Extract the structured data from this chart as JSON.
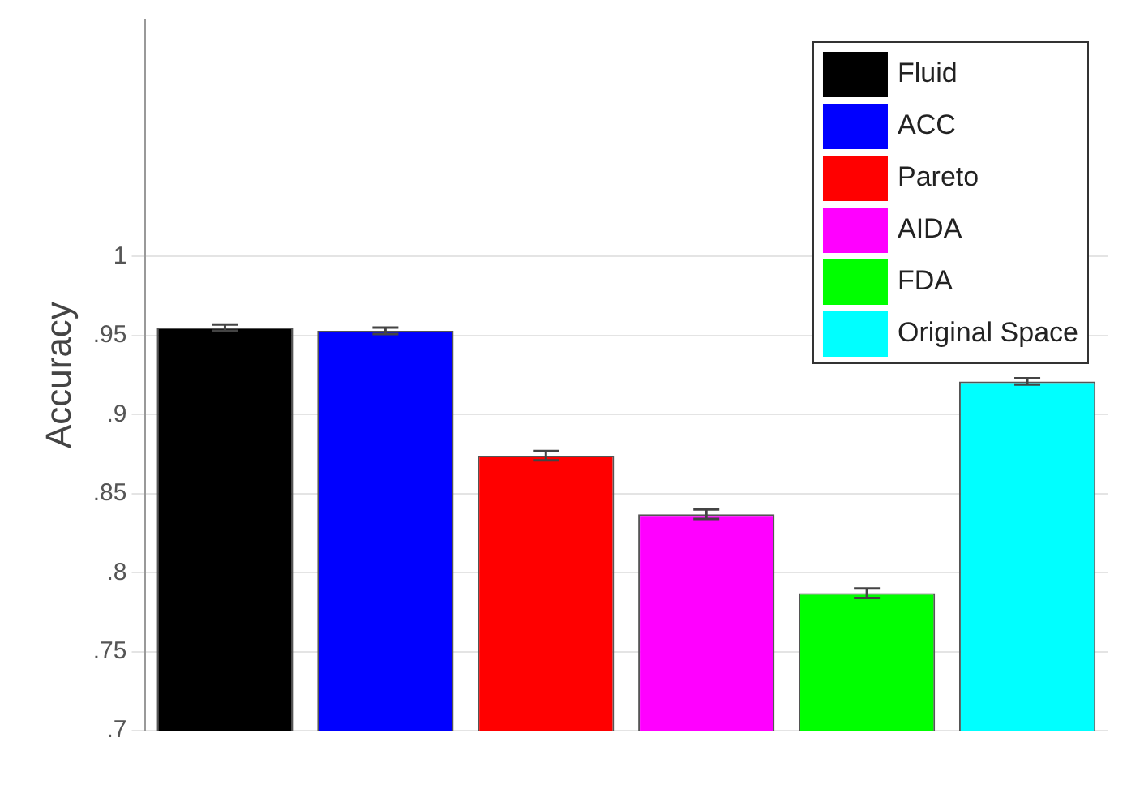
{
  "chart_data": {
    "type": "bar",
    "ylabel": "Accuracy",
    "categories": [
      null,
      null,
      null,
      null,
      null,
      null
    ],
    "series": [
      {
        "name": "Fluid",
        "color": "#000000",
        "values": [
          0.955,
          null,
          null,
          null,
          null,
          null
        ],
        "errors": [
          0.002,
          null,
          null,
          null,
          null,
          null
        ]
      },
      {
        "name": "ACC",
        "color": "#0000ff",
        "values": [
          null,
          0.953,
          null,
          null,
          null,
          null
        ],
        "errors": [
          null,
          0.002,
          null,
          null,
          null,
          null
        ]
      },
      {
        "name": "Pareto",
        "color": "#ff0000",
        "values": [
          null,
          null,
          0.874,
          null,
          null,
          null
        ],
        "errors": [
          null,
          null,
          0.003,
          null,
          null,
          null
        ]
      },
      {
        "name": "AIDA",
        "color": "#ff00ff",
        "values": [
          null,
          null,
          null,
          0.837,
          null,
          null
        ],
        "errors": [
          null,
          null,
          null,
          0.003,
          null,
          null
        ]
      },
      {
        "name": "FDA",
        "color": "#00ff00",
        "values": [
          null,
          null,
          null,
          null,
          0.787,
          null
        ],
        "errors": [
          null,
          null,
          null,
          null,
          0.003,
          null
        ]
      },
      {
        "name": "Original Space",
        "color": "#00ffff",
        "values": [
          null,
          null,
          null,
          null,
          null,
          0.921
        ],
        "errors": [
          null,
          null,
          null,
          null,
          null,
          0.002
        ]
      }
    ],
    "ylim": [
      0.7,
      1.15
    ],
    "yticks": [
      {
        "value": 0.7,
        "label": ".7"
      },
      {
        "value": 0.75,
        "label": ".75"
      },
      {
        "value": 0.8,
        "label": ".8"
      },
      {
        "value": 0.85,
        "label": ".85"
      },
      {
        "value": 0.9,
        "label": ".9"
      },
      {
        "value": 0.95,
        "label": ".95"
      },
      1
    ],
    "grid": "y",
    "legend": "top right"
  }
}
